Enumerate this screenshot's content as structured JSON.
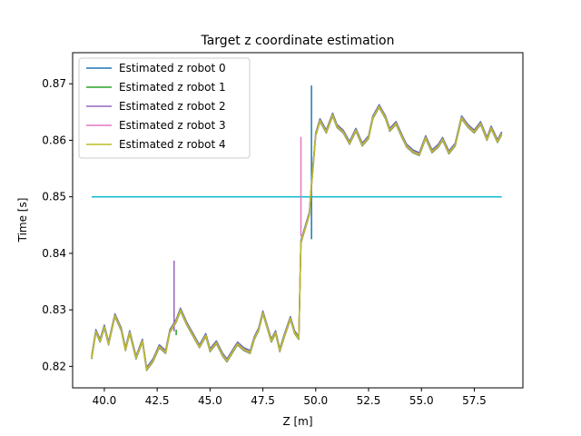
{
  "chart_data": {
    "type": "line",
    "title": "Target z coordinate estimation",
    "xlabel": "Z [m]",
    "ylabel": "Time [s]",
    "xlim": [
      38.5,
      59.8
    ],
    "ylim": [
      0.8162,
      0.8755
    ],
    "xticks": [
      40.0,
      42.5,
      45.0,
      47.5,
      50.0,
      52.5,
      55.0,
      57.5
    ],
    "xtick_labels": [
      "40.0",
      "42.5",
      "45.0",
      "47.5",
      "50.0",
      "52.5",
      "55.0",
      "57.5"
    ],
    "yticks": [
      0.82,
      0.83,
      0.84,
      0.85,
      0.86,
      0.87
    ],
    "ytick_labels": [
      "0.82",
      "0.83",
      "0.84",
      "0.85",
      "0.86",
      "0.87"
    ],
    "grid": false,
    "legend_position": "upper-left",
    "reference_line": {
      "x": [
        39.4,
        58.8
      ],
      "y": 0.85,
      "color": "#17becf"
    },
    "series": [
      {
        "name": "Estimated z robot 0",
        "color": "#1f77b4",
        "spike": {
          "x": 49.8,
          "y_from": 0.8425,
          "y_to": 0.8697
        }
      },
      {
        "name": "Estimated z robot 1",
        "color": "#2ca02c",
        "spike": {
          "x": 43.4,
          "y_from": 0.8255,
          "y_to": 0.8265
        }
      },
      {
        "name": "Estimated z robot 2",
        "color": "#9467bd",
        "spike": {
          "x": 43.3,
          "y_from": 0.8262,
          "y_to": 0.8387
        }
      },
      {
        "name": "Estimated z robot 3",
        "color": "#e377c2",
        "spike": {
          "x": 49.3,
          "y_from": 0.843,
          "y_to": 0.8606
        }
      },
      {
        "name": "Estimated z robot 4",
        "color": "#bcbd22",
        "spike": null
      }
    ],
    "base_curve": [
      [
        39.4,
        0.8215
      ],
      [
        39.6,
        0.8262
      ],
      [
        39.8,
        0.8245
      ],
      [
        40.0,
        0.827
      ],
      [
        40.2,
        0.824
      ],
      [
        40.5,
        0.829
      ],
      [
        40.8,
        0.8265
      ],
      [
        41.0,
        0.823
      ],
      [
        41.2,
        0.826
      ],
      [
        41.5,
        0.8215
      ],
      [
        41.8,
        0.8245
      ],
      [
        42.0,
        0.8195
      ],
      [
        42.3,
        0.821
      ],
      [
        42.6,
        0.8235
      ],
      [
        42.9,
        0.8225
      ],
      [
        43.1,
        0.8262
      ],
      [
        43.4,
        0.828
      ],
      [
        43.6,
        0.83
      ],
      [
        43.9,
        0.8275
      ],
      [
        44.2,
        0.8255
      ],
      [
        44.5,
        0.8235
      ],
      [
        44.8,
        0.8255
      ],
      [
        45.0,
        0.8228
      ],
      [
        45.3,
        0.8242
      ],
      [
        45.6,
        0.822
      ],
      [
        45.8,
        0.821
      ],
      [
        46.0,
        0.8222
      ],
      [
        46.3,
        0.824
      ],
      [
        46.6,
        0.823
      ],
      [
        46.9,
        0.8225
      ],
      [
        47.1,
        0.825
      ],
      [
        47.3,
        0.8265
      ],
      [
        47.5,
        0.8295
      ],
      [
        47.7,
        0.827
      ],
      [
        47.9,
        0.8245
      ],
      [
        48.1,
        0.826
      ],
      [
        48.3,
        0.8228
      ],
      [
        48.5,
        0.8252
      ],
      [
        48.8,
        0.8285
      ],
      [
        49.0,
        0.826
      ],
      [
        49.2,
        0.825
      ],
      [
        49.3,
        0.842
      ],
      [
        49.5,
        0.8445
      ],
      [
        49.7,
        0.847
      ],
      [
        49.8,
        0.852
      ],
      [
        50.0,
        0.861
      ],
      [
        50.2,
        0.8635
      ],
      [
        50.5,
        0.8615
      ],
      [
        50.8,
        0.8645
      ],
      [
        51.0,
        0.8625
      ],
      [
        51.3,
        0.8615
      ],
      [
        51.6,
        0.8595
      ],
      [
        51.9,
        0.8618
      ],
      [
        52.2,
        0.8592
      ],
      [
        52.5,
        0.8605
      ],
      [
        52.7,
        0.864
      ],
      [
        53.0,
        0.866
      ],
      [
        53.3,
        0.864
      ],
      [
        53.5,
        0.8618
      ],
      [
        53.8,
        0.863
      ],
      [
        54.1,
        0.8605
      ],
      [
        54.3,
        0.859
      ],
      [
        54.6,
        0.858
      ],
      [
        54.9,
        0.8575
      ],
      [
        55.2,
        0.8605
      ],
      [
        55.5,
        0.858
      ],
      [
        55.8,
        0.859
      ],
      [
        56.0,
        0.8602
      ],
      [
        56.3,
        0.8578
      ],
      [
        56.6,
        0.8592
      ],
      [
        56.9,
        0.864
      ],
      [
        57.2,
        0.8625
      ],
      [
        57.5,
        0.8615
      ],
      [
        57.8,
        0.863
      ],
      [
        58.1,
        0.8602
      ],
      [
        58.3,
        0.8622
      ],
      [
        58.6,
        0.8598
      ],
      [
        58.8,
        0.8612
      ]
    ]
  }
}
